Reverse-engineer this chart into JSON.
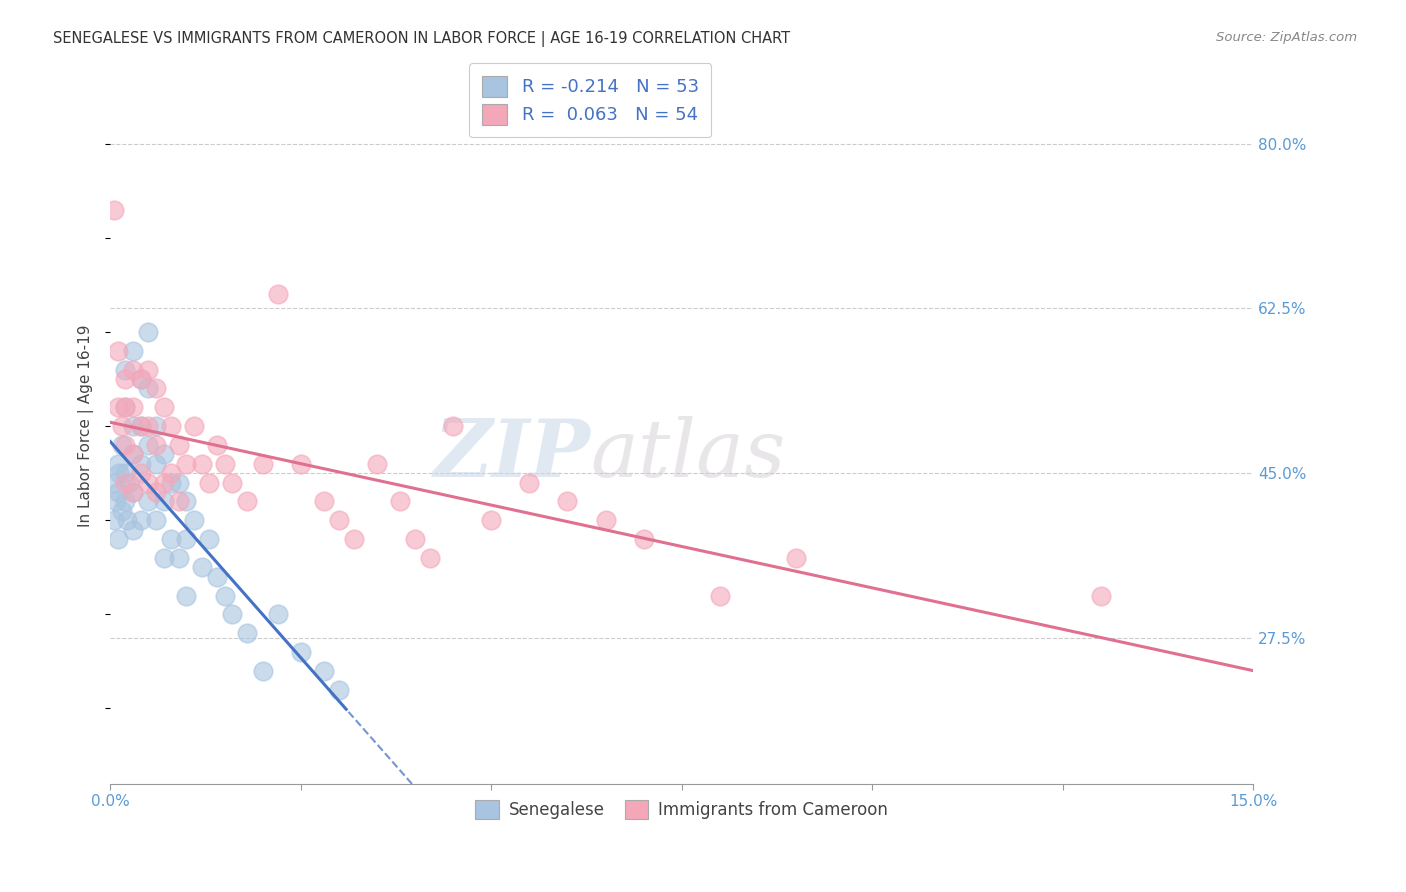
{
  "title": "SENEGALESE VS IMMIGRANTS FROM CAMEROON IN LABOR FORCE | AGE 16-19 CORRELATION CHART",
  "source": "Source: ZipAtlas.com",
  "ylabel": "In Labor Force | Age 16-19",
  "xlim": [
    0.0,
    0.15
  ],
  "ylim": [
    0.12,
    0.88
  ],
  "xticks": [
    0.0,
    0.025,
    0.05,
    0.075,
    0.1,
    0.125,
    0.15
  ],
  "xticklabels": [
    "0.0%",
    "",
    "",
    "",
    "",
    "",
    "15.0%"
  ],
  "yticks_right": [
    0.275,
    0.45,
    0.625,
    0.8
  ],
  "yticklabels_right": [
    "27.5%",
    "45.0%",
    "62.5%",
    "80.0%"
  ],
  "grid_color": "#cccccc",
  "background_color": "#ffffff",
  "senegalese_color": "#a8c4e0",
  "cameroon_color": "#f4a7b9",
  "trend_senegalese_color": "#4472c4",
  "trend_cameroon_color": "#e07090",
  "legend_label_1": "R = -0.214   N = 53",
  "legend_label_2": "R =  0.063   N = 54",
  "watermark_zip": "ZIP",
  "watermark_atlas": "atlas",
  "senegalese_x": [
    0.0005,
    0.0005,
    0.0008,
    0.001,
    0.001,
    0.001,
    0.0012,
    0.0015,
    0.0015,
    0.002,
    0.002,
    0.002,
    0.002,
    0.0022,
    0.0025,
    0.003,
    0.003,
    0.003,
    0.003,
    0.003,
    0.004,
    0.004,
    0.004,
    0.004,
    0.005,
    0.005,
    0.005,
    0.005,
    0.006,
    0.006,
    0.006,
    0.007,
    0.007,
    0.007,
    0.008,
    0.008,
    0.009,
    0.009,
    0.01,
    0.01,
    0.01,
    0.011,
    0.012,
    0.013,
    0.014,
    0.015,
    0.016,
    0.018,
    0.02,
    0.022,
    0.025,
    0.028,
    0.03
  ],
  "senegalese_y": [
    0.44,
    0.4,
    0.42,
    0.46,
    0.43,
    0.38,
    0.45,
    0.48,
    0.41,
    0.56,
    0.52,
    0.45,
    0.42,
    0.4,
    0.44,
    0.58,
    0.5,
    0.47,
    0.43,
    0.39,
    0.55,
    0.5,
    0.46,
    0.4,
    0.6,
    0.54,
    0.48,
    0.42,
    0.5,
    0.46,
    0.4,
    0.47,
    0.42,
    0.36,
    0.44,
    0.38,
    0.44,
    0.36,
    0.42,
    0.38,
    0.32,
    0.4,
    0.35,
    0.38,
    0.34,
    0.32,
    0.3,
    0.28,
    0.24,
    0.3,
    0.26,
    0.24,
    0.22
  ],
  "cameroon_x": [
    0.0005,
    0.001,
    0.001,
    0.0015,
    0.002,
    0.002,
    0.002,
    0.002,
    0.003,
    0.003,
    0.003,
    0.003,
    0.004,
    0.004,
    0.004,
    0.005,
    0.005,
    0.005,
    0.006,
    0.006,
    0.006,
    0.007,
    0.007,
    0.008,
    0.008,
    0.009,
    0.009,
    0.01,
    0.011,
    0.012,
    0.013,
    0.014,
    0.015,
    0.016,
    0.018,
    0.02,
    0.022,
    0.025,
    0.028,
    0.03,
    0.032,
    0.035,
    0.038,
    0.04,
    0.042,
    0.045,
    0.05,
    0.055,
    0.06,
    0.065,
    0.07,
    0.08,
    0.09,
    0.13
  ],
  "cameroon_y": [
    0.73,
    0.58,
    0.52,
    0.5,
    0.55,
    0.52,
    0.48,
    0.44,
    0.56,
    0.52,
    0.47,
    0.43,
    0.55,
    0.5,
    0.45,
    0.56,
    0.5,
    0.44,
    0.54,
    0.48,
    0.43,
    0.52,
    0.44,
    0.5,
    0.45,
    0.48,
    0.42,
    0.46,
    0.5,
    0.46,
    0.44,
    0.48,
    0.46,
    0.44,
    0.42,
    0.46,
    0.64,
    0.46,
    0.42,
    0.4,
    0.38,
    0.46,
    0.42,
    0.38,
    0.36,
    0.5,
    0.4,
    0.44,
    0.42,
    0.4,
    0.38,
    0.32,
    0.36,
    0.32
  ]
}
